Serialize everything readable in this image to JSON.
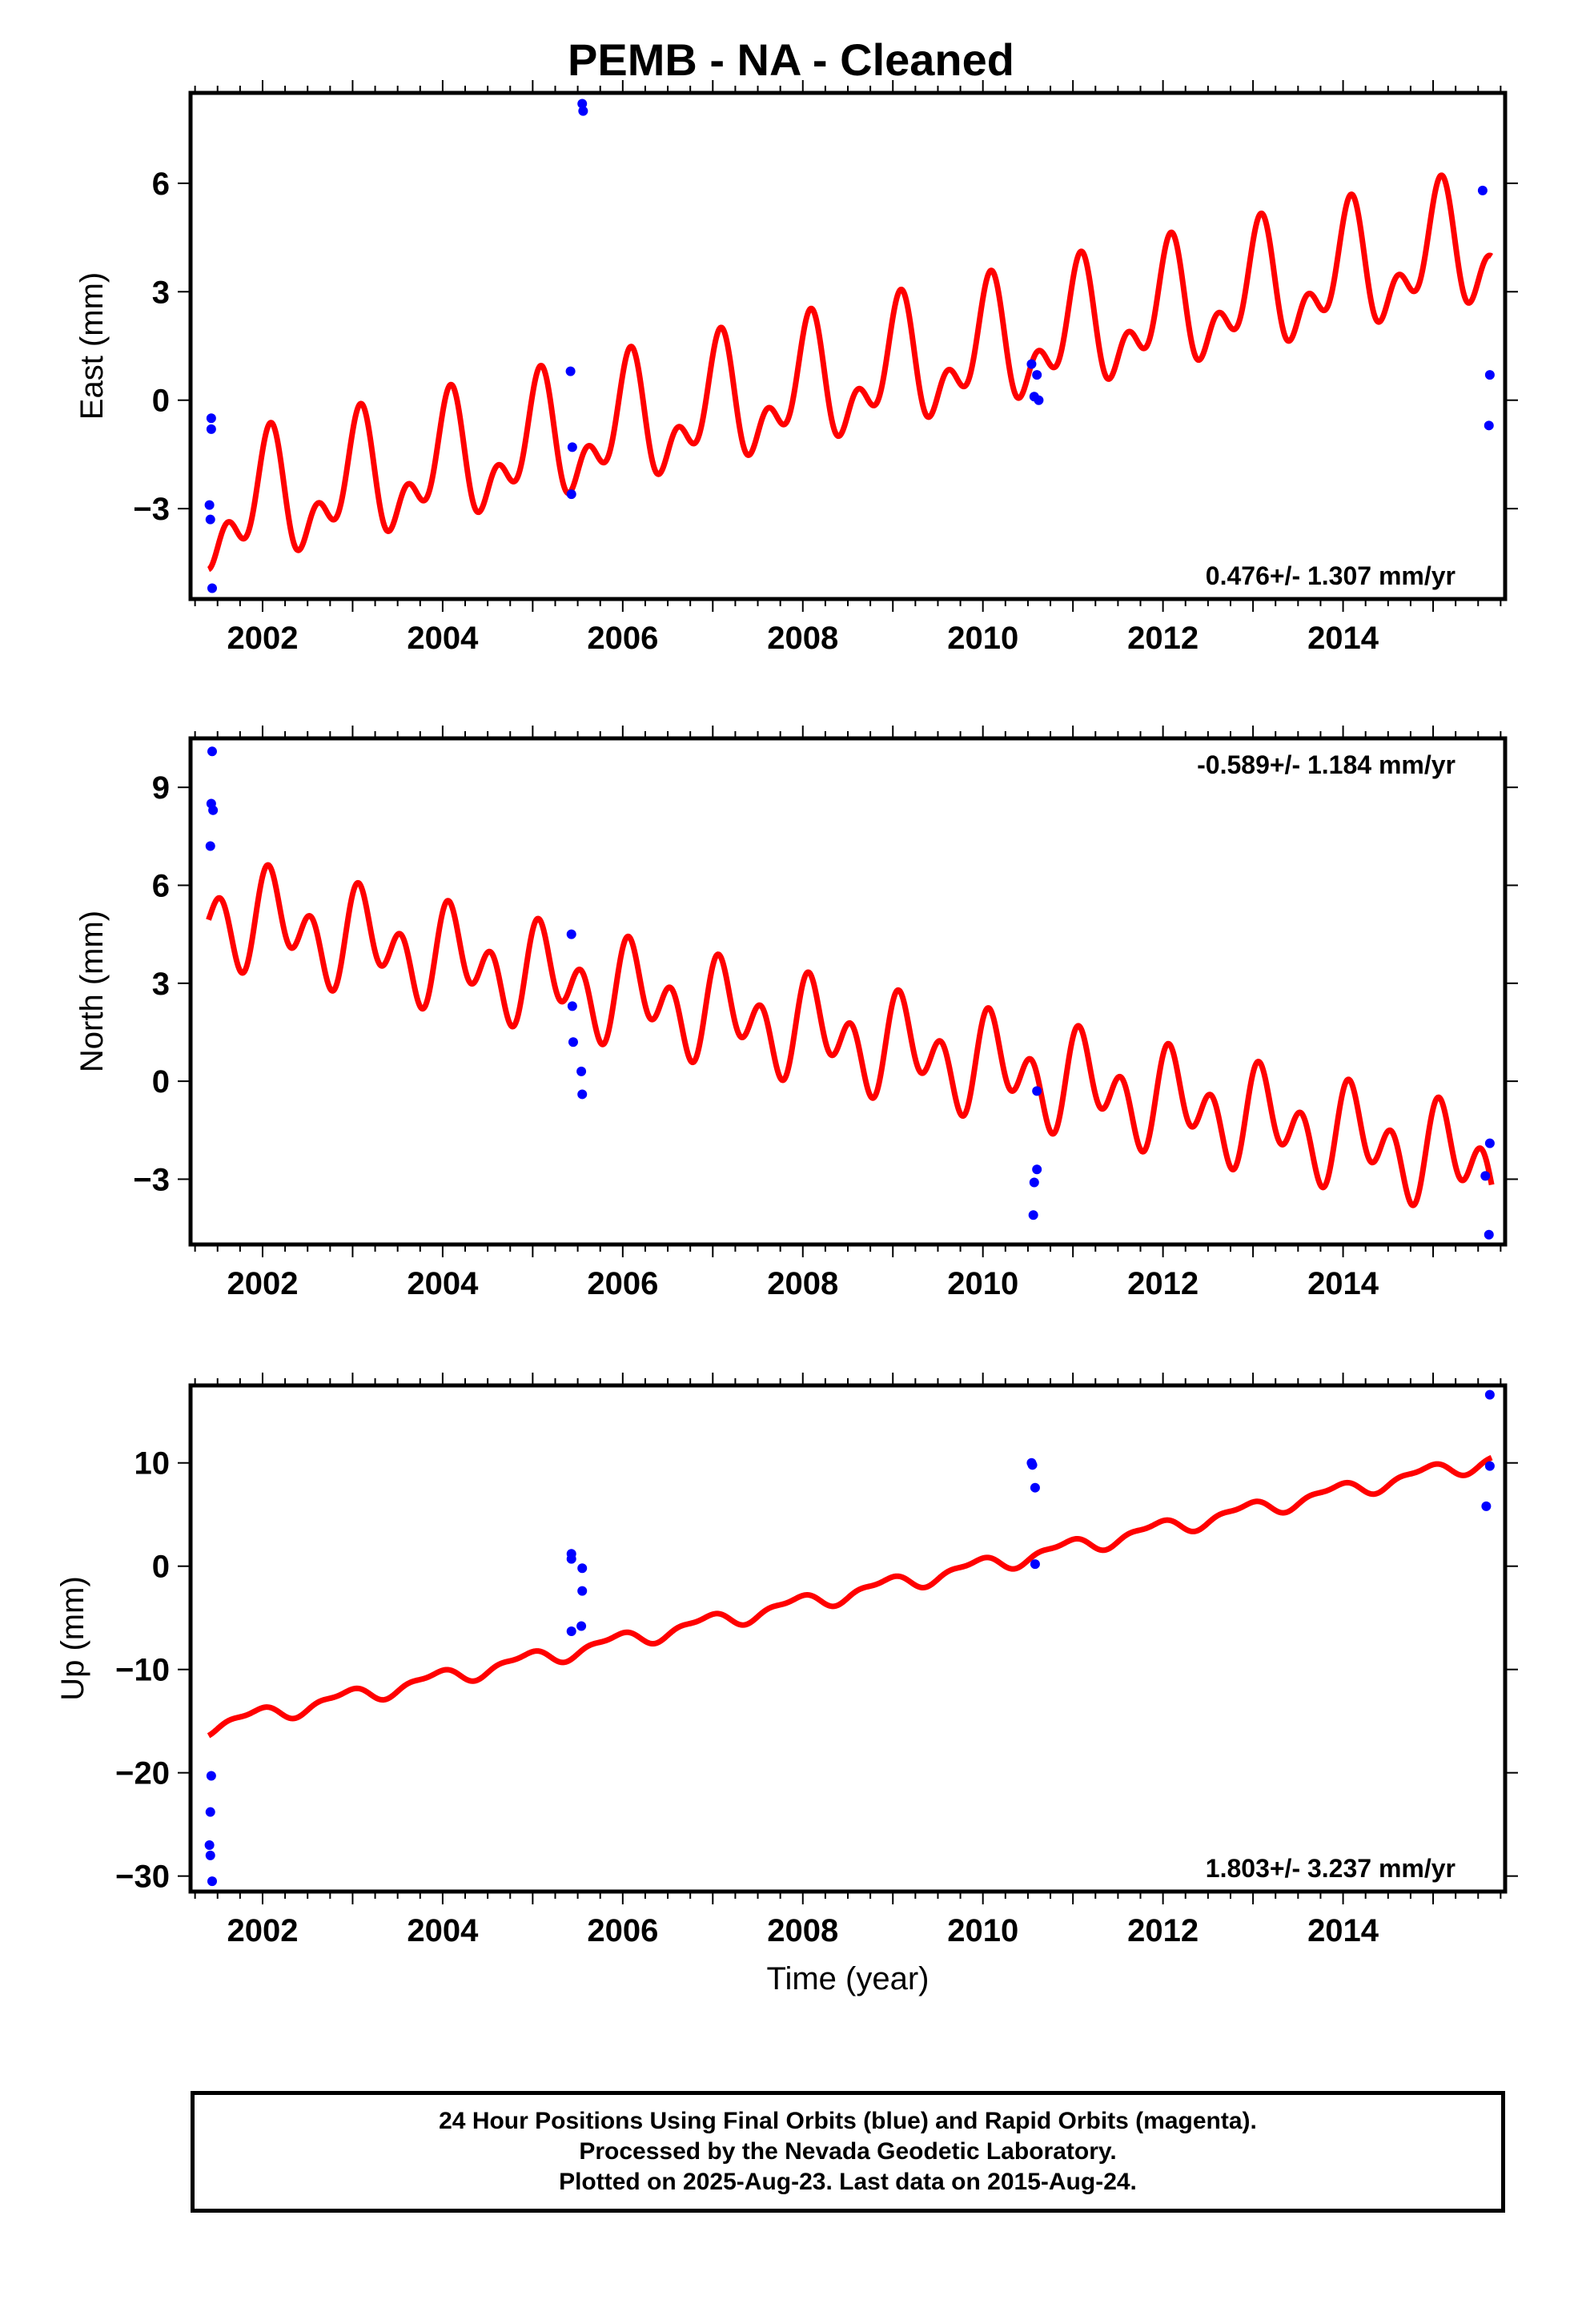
{
  "title": "PEMB  - NA - Cleaned",
  "footer": {
    "lines": [
      "24 Hour Positions Using Final Orbits (blue) and Rapid Orbits (magenta).",
      "Processed by the Nevada Geodetic Laboratory.",
      "Plotted on 2025-Aug-23. Last data on 2015-Aug-24."
    ]
  },
  "colors": {
    "data_points": "#0000ff",
    "model_fit": "#ff0000",
    "frame": "#000000"
  },
  "chart_data": [
    {
      "type": "scatter",
      "panel": "east",
      "ylabel": "East (mm)",
      "xlabel": "",
      "xlim": [
        2001.2,
        2015.8
      ],
      "ylim": [
        -5.5,
        8.5
      ],
      "xticks": [
        2002,
        2004,
        2006,
        2008,
        2010,
        2012,
        2014
      ],
      "yticks": [
        -3,
        0,
        3,
        6
      ],
      "rate_label": "0.476+/- 1.307 mm/yr",
      "rate_position": "bottom-right",
      "points": [
        [
          2001.43,
          -0.5
        ],
        [
          2001.43,
          -0.8
        ],
        [
          2001.41,
          -2.9
        ],
        [
          2001.42,
          -3.3
        ],
        [
          2001.44,
          -5.2
        ],
        [
          2005.42,
          0.8
        ],
        [
          2005.44,
          -1.3
        ],
        [
          2005.43,
          -2.6
        ],
        [
          2005.55,
          8.2
        ],
        [
          2005.56,
          8.0
        ],
        [
          2010.54,
          1.0
        ],
        [
          2010.6,
          0.7
        ],
        [
          2010.57,
          0.1
        ],
        [
          2010.62,
          0.0
        ],
        [
          2015.55,
          5.8
        ],
        [
          2015.63,
          0.7
        ],
        [
          2015.62,
          -0.7
        ]
      ],
      "model": {
        "x_start": 2001.4,
        "x_end": 2015.65,
        "trend_start": -3.2,
        "trend_end": 4.3,
        "annual_amp": 1.3,
        "annual_phase": 1.2,
        "semiannual_amp": 0.95,
        "semiannual_phase": 0.3
      }
    },
    {
      "type": "scatter",
      "panel": "north",
      "ylabel": "North (mm)",
      "xlabel": "",
      "xlim": [
        2001.2,
        2015.8
      ],
      "ylim": [
        -5.0,
        10.5
      ],
      "xticks": [
        2002,
        2004,
        2006,
        2008,
        2010,
        2012,
        2014
      ],
      "yticks": [
        -3,
        0,
        3,
        6,
        9
      ],
      "rate_label": "-0.589+/- 1.184 mm/yr",
      "rate_position": "top-right",
      "points": [
        [
          2001.44,
          10.1
        ],
        [
          2001.43,
          8.5
        ],
        [
          2001.45,
          8.3
        ],
        [
          2001.42,
          7.2
        ],
        [
          2005.43,
          4.5
        ],
        [
          2005.44,
          2.3
        ],
        [
          2005.45,
          1.2
        ],
        [
          2005.54,
          0.3
        ],
        [
          2005.55,
          -0.4
        ],
        [
          2010.6,
          -0.3
        ],
        [
          2010.6,
          -2.7
        ],
        [
          2010.57,
          -3.1
        ],
        [
          2010.56,
          -4.1
        ],
        [
          2015.58,
          -2.9
        ],
        [
          2015.63,
          -1.9
        ],
        [
          2015.62,
          -4.7
        ]
      ],
      "model": {
        "x_start": 2001.4,
        "x_end": 2015.65,
        "trend_start": 5.2,
        "trend_end": -2.6,
        "annual_amp": 0.85,
        "annual_phase": 0.6,
        "semiannual_amp": 1.1,
        "semiannual_phase": 1.0
      }
    },
    {
      "type": "scatter",
      "panel": "up",
      "ylabel": "Up (mm)",
      "xlabel": "Time (year)",
      "xlim": [
        2001.2,
        2015.8
      ],
      "ylim": [
        -31.5,
        17.5
      ],
      "xticks": [
        2002,
        2004,
        2006,
        2008,
        2010,
        2012,
        2014
      ],
      "yticks": [
        -30,
        -20,
        -10,
        0,
        10
      ],
      "rate_label": "1.803+/- 3.237 mm/yr",
      "rate_position": "bottom-right",
      "points": [
        [
          2001.43,
          -20.3
        ],
        [
          2001.42,
          -23.8
        ],
        [
          2001.41,
          -27.0
        ],
        [
          2001.42,
          -28.0
        ],
        [
          2001.44,
          -30.5
        ],
        [
          2005.43,
          1.2
        ],
        [
          2005.43,
          0.7
        ],
        [
          2005.55,
          -0.2
        ],
        [
          2005.55,
          -2.4
        ],
        [
          2005.54,
          -5.8
        ],
        [
          2005.43,
          -6.3
        ],
        [
          2010.54,
          10.0
        ],
        [
          2010.55,
          9.8
        ],
        [
          2010.58,
          7.6
        ],
        [
          2010.58,
          0.2
        ],
        [
          2015.63,
          16.6
        ],
        [
          2015.63,
          9.7
        ],
        [
          2015.59,
          5.8
        ]
      ],
      "model": {
        "x_start": 2001.4,
        "x_end": 2015.65,
        "trend_start": -15.5,
        "trend_end": 10.3,
        "annual_amp": 0.7,
        "annual_phase": 2.2,
        "semiannual_amp": 0.3,
        "semiannual_phase": 0.5
      }
    }
  ]
}
